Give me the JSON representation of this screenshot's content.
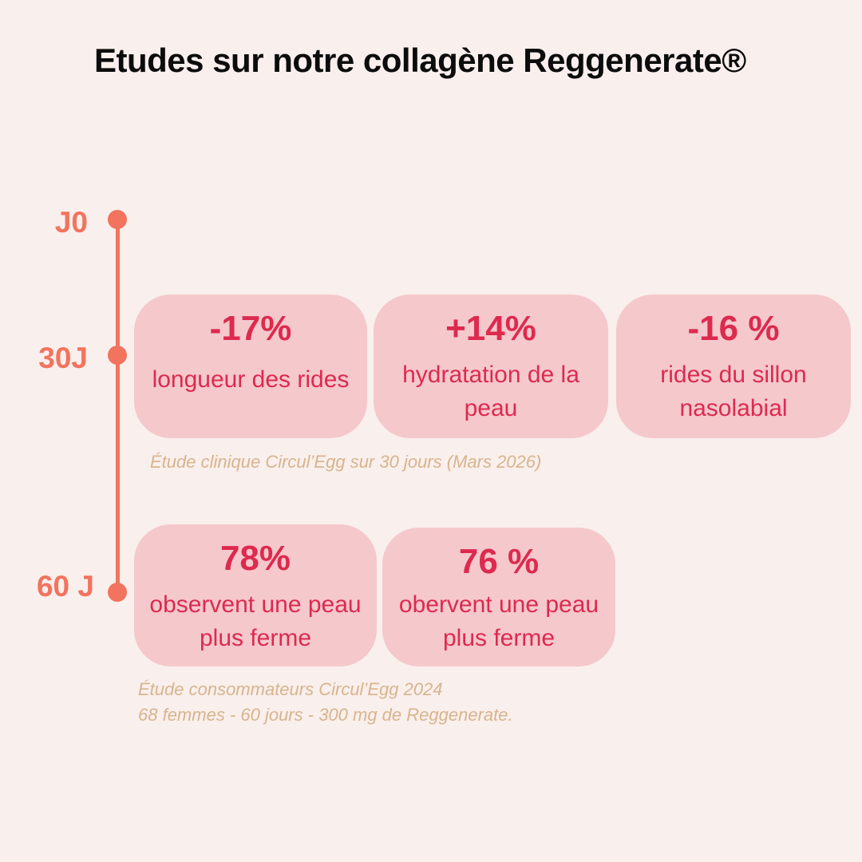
{
  "title": "Etudes sur notre collagène Reggenerate®",
  "timeline": {
    "labels": [
      "J0",
      "30J",
      "60 J"
    ]
  },
  "cards": [
    {
      "value": "-17%",
      "text": "longueur des rides"
    },
    {
      "value": "+14%",
      "text": "hydratation de la peau"
    },
    {
      "value": "-16 %",
      "text": "rides du sillon nasolabial"
    },
    {
      "value": "78%",
      "text": "observent une peau plus ferme"
    },
    {
      "value": "76 %",
      "text": "obervent une peau plus ferme"
    }
  ],
  "notes": {
    "study30": "Étude clinique  Circul’Egg sur 30 jours (Mars 2026)",
    "study60_line1": "Étude consommateurs Circul’Egg 2024",
    "study60_line2": "68 femmes - 60 jours - 300 mg de Reggenerate."
  },
  "colors": {
    "background": "#f9efec",
    "timeline": "#f2735e",
    "card": "#f5c8cc",
    "card_text": "#dd2a4f",
    "note": "#d8b48e"
  }
}
